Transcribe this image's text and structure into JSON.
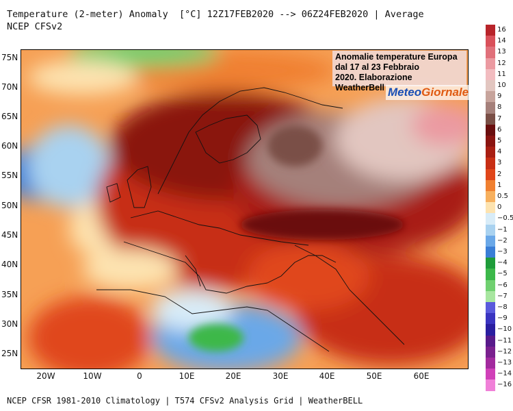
{
  "header": {
    "title": "Temperature (2-meter) Anomaly  [°C] 12Z17FEB2020 --> 06Z24FEB2020 | Average",
    "subtitle": "NCEP CFSv2"
  },
  "footer": "NCEP CFSR 1981-2010 Climatology | T574 CFSv2 Analysis Grid | WeatherBELL",
  "annotation": {
    "line1": "Anomalie temperature Europa",
    "line2": "dal 17 al 23 Febbraio",
    "line3": "2020. Elaborazione WeatherBell"
  },
  "logo": {
    "part1": "Meteo",
    "part2": "Giornale"
  },
  "axes": {
    "y_ticks": [
      "75N",
      "70N",
      "65N",
      "60N",
      "55N",
      "50N",
      "45N",
      "40N",
      "35N",
      "30N",
      "25N"
    ],
    "x_ticks": [
      "20W",
      "10W",
      "0",
      "10E",
      "20E",
      "30E",
      "40E",
      "50E",
      "60E"
    ]
  },
  "colorbar": {
    "labels": [
      "16",
      "14",
      "13",
      "12",
      "11",
      "10",
      "9",
      "8",
      "7",
      "6",
      "5",
      "4",
      "3",
      "2",
      "1",
      "0.5",
      "0",
      "−0.5",
      "−1",
      "−2",
      "−3",
      "−4",
      "−5",
      "−6",
      "−7",
      "−8",
      "−9",
      "−10",
      "−11",
      "−12",
      "−13",
      "−14",
      "−16"
    ],
    "colors": [
      "#b8242a",
      "#d9505a",
      "#e0707a",
      "#eb9aa1",
      "#f2bcc0",
      "#e2c6c0",
      "#c7a49c",
      "#a5807a",
      "#7a4f46",
      "#6a0e0e",
      "#8a1410",
      "#a81e12",
      "#c72e14",
      "#e0461a",
      "#f08030",
      "#f7b05e",
      "#fde3b0",
      "#d8ecf8",
      "#a9d2f0",
      "#6aa8e8",
      "#3a7ed6",
      "#1e9c3a",
      "#3cb84a",
      "#70d070",
      "#a8e6a0",
      "#5a5adc",
      "#3a34c0",
      "#2a1ea0",
      "#581a8a",
      "#7a208e",
      "#a22a9e",
      "#d040b8",
      "#f080d8"
    ]
  }
}
